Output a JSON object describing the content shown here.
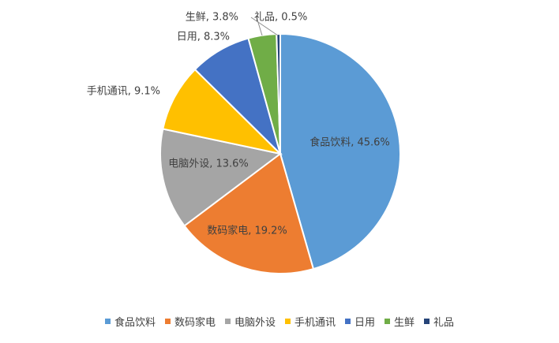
{
  "chart_data": {
    "type": "pie",
    "categories": [
      "食品饮料",
      "数码家电",
      "电脑外设",
      "手机通讯",
      "日用",
      "生鲜",
      "礼品"
    ],
    "values": [
      45.6,
      19.2,
      13.6,
      9.1,
      8.3,
      3.8,
      0.5
    ],
    "value_format": "percent",
    "colors": [
      "#5b9bd5",
      "#ed7d31",
      "#a5a5a5",
      "#ffc000",
      "#4472c4",
      "#70ad47",
      "#264478"
    ],
    "data_labels": [
      "食品饮料, 45.6%",
      "数码家电, 19.2%",
      "电脑外设, 13.6%",
      "手机通讯, 9.1%",
      "日用, 8.3%",
      "生鲜, 3.8%",
      "礼品, 0.5%"
    ],
    "legend_position": "bottom",
    "start_angle": "12 o'clock",
    "direction": "clockwise"
  }
}
